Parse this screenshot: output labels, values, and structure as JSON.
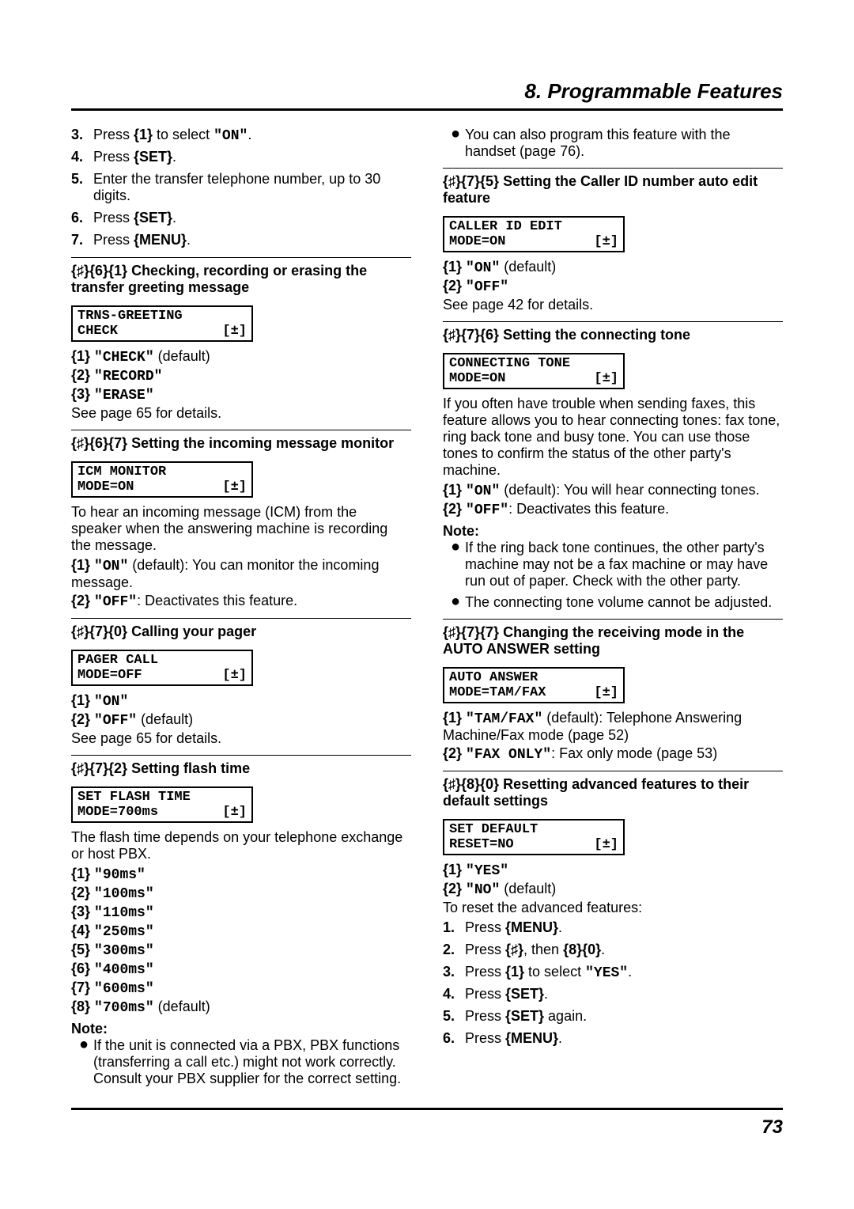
{
  "header": {
    "title": "8. Programmable Features"
  },
  "page_number": "73",
  "left": {
    "cont_steps": [
      {
        "n": "3.",
        "body_a": "Press ",
        "key1": "{1}",
        "body_b": " to select ",
        "mono": "\"ON\"",
        "body_c": "."
      },
      {
        "n": "4.",
        "body_a": "Press ",
        "key1": "{SET}",
        "body_b": ".",
        "mono": "",
        "body_c": ""
      },
      {
        "n": "5.",
        "body_a": "Enter the transfer telephone number, up to 30 digits.",
        "key1": "",
        "body_b": "",
        "mono": "",
        "body_c": ""
      },
      {
        "n": "6.",
        "body_a": "Press ",
        "key1": "{SET}",
        "body_b": ".",
        "mono": "",
        "body_c": ""
      },
      {
        "n": "7.",
        "body_a": "Press ",
        "key1": "{MENU}",
        "body_b": ".",
        "mono": "",
        "body_c": ""
      }
    ],
    "s661": {
      "title_keys": "{♯}{6}{1}",
      "title_rest": " Checking, recording or erasing the transfer greeting message",
      "lcd1": "TRNS-GREETING",
      "lcd2a": "CHECK",
      "lcd2b": "[±]",
      "opts": [
        {
          "k": "{1}",
          "m": "\"CHECK\"",
          "t": " (default)"
        },
        {
          "k": "{2}",
          "m": "\"RECORD\"",
          "t": ""
        },
        {
          "k": "{3}",
          "m": "\"ERASE\"",
          "t": ""
        }
      ],
      "foot": "See page 65 for details."
    },
    "s667": {
      "title_keys": "{♯}{6}{7}",
      "title_rest": " Setting the incoming message monitor",
      "lcd1": "ICM MONITOR",
      "lcd2a": "MODE=ON",
      "lcd2b": "[±]",
      "para": "To hear an incoming message (ICM) from the speaker when the answering machine is recording the message.",
      "opt1k": "{1}",
      "opt1m": "\"ON\"",
      "opt1t": " (default): You can monitor the incoming message.",
      "opt2k": "{2}",
      "opt2m": "\"OFF\"",
      "opt2t": ": Deactivates this feature."
    },
    "s670": {
      "title_keys": "{♯}{7}{0}",
      "title_rest": " Calling your pager",
      "lcd1": "PAGER CALL",
      "lcd2a": "MODE=OFF",
      "lcd2b": "[±]",
      "opts": [
        {
          "k": "{1}",
          "m": "\"ON\"",
          "t": ""
        },
        {
          "k": "{2}",
          "m": "\"OFF\"",
          "t": " (default)"
        }
      ],
      "foot": "See page 65 for details."
    },
    "s672": {
      "title_keys": "{♯}{7}{2}",
      "title_rest": " Setting flash time",
      "lcd1": "SET FLASH TIME",
      "lcd2a": "MODE=700ms",
      "lcd2b": "[±]",
      "para": "The flash time depends on your telephone exchange or host PBX.",
      "opts": [
        {
          "k": "{1}",
          "m": "\"90ms\"",
          "t": ""
        },
        {
          "k": "{2}",
          "m": "\"100ms\"",
          "t": ""
        },
        {
          "k": "{3}",
          "m": "\"110ms\"",
          "t": ""
        },
        {
          "k": "{4}",
          "m": "\"250ms\"",
          "t": ""
        },
        {
          "k": "{5}",
          "m": "\"300ms\"",
          "t": ""
        },
        {
          "k": "{6}",
          "m": "\"400ms\"",
          "t": ""
        },
        {
          "k": "{7}",
          "m": "\"600ms\"",
          "t": ""
        },
        {
          "k": "{8}",
          "m": "\"700ms\"",
          "t": " (default)"
        }
      ],
      "note": "Note:",
      "bullet": "If the unit is connected via a PBX, PBX functions (transferring a call etc.) might not work correctly. Consult your PBX supplier for the correct setting."
    }
  },
  "right": {
    "top_bullet": "You can also program this feature with the handset (page 76).",
    "s675": {
      "title_keys": "{♯}{7}{5}",
      "title_rest": " Setting the Caller ID number auto edit feature",
      "lcd1": "CALLER ID EDIT",
      "lcd2a": "MODE=ON",
      "lcd2b": "[±]",
      "opts": [
        {
          "k": "{1}",
          "m": "\"ON\"",
          "t": " (default)"
        },
        {
          "k": "{2}",
          "m": "\"OFF\"",
          "t": ""
        }
      ],
      "foot": "See page 42 for details."
    },
    "s676": {
      "title_keys": "{♯}{7}{6}",
      "title_rest": " Setting the connecting tone",
      "lcd1": "CONNECTING TONE",
      "lcd2a": "MODE=ON",
      "lcd2b": "[±]",
      "para": "If you often have trouble when sending faxes, this feature allows you to hear connecting tones: fax tone, ring back tone and busy tone. You can use those tones to confirm the status of the other party's machine.",
      "opt1k": "{1}",
      "opt1m": "\"ON\"",
      "opt1t": " (default): You will hear connecting tones.",
      "opt2k": "{2}",
      "opt2m": "\"OFF\"",
      "opt2t": ": Deactivates this feature.",
      "note": "Note:",
      "b1": "If the ring back tone continues, the other party's machine may not be a fax machine or may have run out of paper. Check with the other party.",
      "b2": "The connecting tone volume cannot be adjusted."
    },
    "s677": {
      "title_keys": "{♯}{7}{7}",
      "title_rest": " Changing the receiving mode in the AUTO ANSWER setting",
      "lcd1": "AUTO ANSWER",
      "lcd2a": "MODE=TAM/FAX",
      "lcd2b": "[±]",
      "opt1k": "{1}",
      "opt1m": "\"TAM/FAX\"",
      "opt1t": " (default): Telephone Answering Machine/Fax mode (page 52)",
      "opt2k": "{2}",
      "opt2m": "\"FAX ONLY\"",
      "opt2t": ": Fax only mode (page 53)"
    },
    "s680": {
      "title_keys": "{♯}{8}{0}",
      "title_rest": " Resetting advanced features to their default settings",
      "lcd1": "SET DEFAULT",
      "lcd2a": "RESET=NO",
      "lcd2b": "[±]",
      "opts": [
        {
          "k": "{1}",
          "m": "\"YES\"",
          "t": ""
        },
        {
          "k": "{2}",
          "m": "\"NO\"",
          "t": " (default)"
        }
      ],
      "para": "To reset the advanced features:",
      "steps": [
        {
          "n": "1.",
          "a": "Press ",
          "k1": "{MENU}",
          "b": ".",
          "k2": "",
          "c": "",
          "m": "",
          "d": ""
        },
        {
          "n": "2.",
          "a": "Press ",
          "k1": "{♯}",
          "b": ", then ",
          "k2": "{8}{0}",
          "c": ".",
          "m": "",
          "d": ""
        },
        {
          "n": "3.",
          "a": "Press ",
          "k1": "{1}",
          "b": " to select ",
          "k2": "",
          "c": "",
          "m": "\"YES\"",
          "d": "."
        },
        {
          "n": "4.",
          "a": "Press ",
          "k1": "{SET}",
          "b": ".",
          "k2": "",
          "c": "",
          "m": "",
          "d": ""
        },
        {
          "n": "5.",
          "a": "Press ",
          "k1": "{SET}",
          "b": " again.",
          "k2": "",
          "c": "",
          "m": "",
          "d": ""
        },
        {
          "n": "6.",
          "a": "Press ",
          "k1": "{MENU}",
          "b": ".",
          "k2": "",
          "c": "",
          "m": "",
          "d": ""
        }
      ]
    }
  }
}
